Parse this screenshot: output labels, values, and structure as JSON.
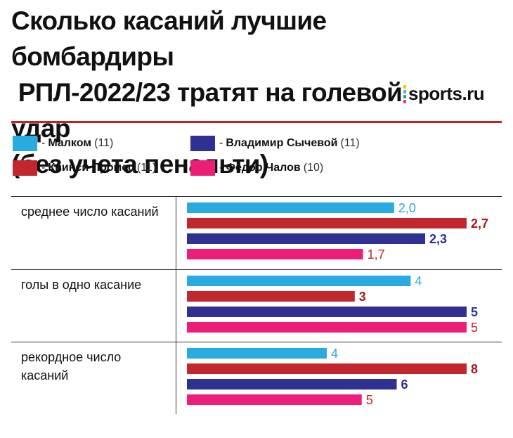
{
  "title": {
    "line1": "Сколько касаний лучшие бомбардиры",
    "line2": "РПЛ-2022/23 тратят на голевой удар",
    "line3": "(без учета пенальти)"
  },
  "logo": {
    "text": "sports.ru",
    "dot_colors": [
      "#f2c500",
      "#3fb4e5",
      "#34a853",
      "#e8308c"
    ]
  },
  "legend": [
    {
      "dash": "-",
      "name": "Малком",
      "count": "(11)",
      "color": "#29abe2"
    },
    {
      "dash": "-",
      "name": "Владимир Сычевой",
      "count": "(11)",
      "color": "#2e3192"
    },
    {
      "dash": "-",
      "name": "Квинси Промес",
      "count": "(11)",
      "color": "#c1272d"
    },
    {
      "dash": "-",
      "name": "Федор Чалов",
      "count": "(10)",
      "color": "#ed1e79"
    }
  ],
  "chart_data": {
    "type": "bar",
    "orientation": "horizontal",
    "groups": [
      {
        "label": "среднее число касаний",
        "xmax": 2.7,
        "values": [
          2.0,
          2.7,
          2.3,
          1.7
        ],
        "labels": [
          "2,0",
          "2,7",
          "2,3",
          "1,7"
        ]
      },
      {
        "label": "голы в одно касание",
        "xmax": 5,
        "values": [
          4,
          3,
          5,
          5
        ],
        "labels": [
          "4",
          "3",
          "5",
          "5"
        ]
      },
      {
        "label": "рекордное число касаний",
        "xmax": 8,
        "values": [
          4,
          8,
          6,
          5
        ],
        "labels": [
          "4",
          "8",
          "6",
          "5"
        ]
      }
    ],
    "series": [
      {
        "name": "Малком",
        "color": "#29abe2",
        "label_color": "#29abe2",
        "label_bold": false
      },
      {
        "name": "Квинси Промес",
        "color": "#c1272d",
        "label_color": "#9e1b1f",
        "label_bold": true
      },
      {
        "name": "Владимир Сычевой",
        "color": "#2e3192",
        "label_color": "#2e3192",
        "label_bold": true
      },
      {
        "name": "Федор Чалов",
        "color": "#ed1e79",
        "label_color": "#c1272d",
        "label_bold": false
      }
    ]
  }
}
